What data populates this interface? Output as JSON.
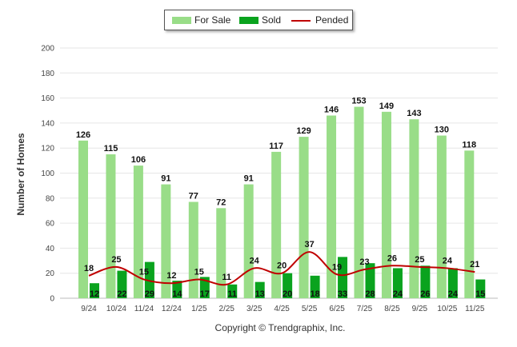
{
  "chart_data": {
    "type": "bar",
    "categories": [
      "9/24",
      "10/24",
      "11/24",
      "12/24",
      "1/25",
      "2/25",
      "3/25",
      "4/25",
      "5/25",
      "6/25",
      "7/25",
      "8/25",
      "9/25",
      "10/25",
      "11/25"
    ],
    "series": [
      {
        "name": "For Sale",
        "type": "bar",
        "color": "#99dd88",
        "values": [
          126,
          115,
          106,
          91,
          77,
          72,
          91,
          117,
          129,
          146,
          153,
          149,
          143,
          130,
          118
        ]
      },
      {
        "name": "Sold",
        "type": "bar",
        "color": "#0aa31e",
        "values": [
          12,
          22,
          29,
          14,
          17,
          11,
          13,
          20,
          18,
          33,
          28,
          24,
          26,
          24,
          15
        ]
      },
      {
        "name": "Pended",
        "type": "line",
        "color": "#c00000",
        "values": [
          18,
          25,
          15,
          12,
          15,
          11,
          24,
          20,
          37,
          19,
          23,
          26,
          25,
          24,
          21
        ]
      }
    ],
    "title": "",
    "xlabel": "",
    "ylabel": "Number of Homes",
    "ylim": [
      0,
      200
    ],
    "yticks": [
      0,
      20,
      40,
      60,
      80,
      100,
      120,
      140,
      160,
      180,
      200
    ],
    "grid": true,
    "legend": "top-center"
  },
  "footer": {
    "copyright": "Copyright © Trendgraphix, Inc."
  }
}
